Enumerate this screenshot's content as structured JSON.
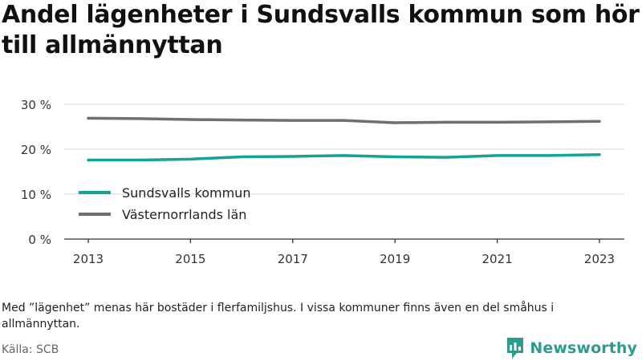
{
  "title": "Andel lägenheter i Sundsvalls kommun som hör till allmännyttan",
  "note": "Med ”lägenhet” menas här bostäder i flerfamiljshus. I vissa kommuner finns även en del småhus i allmännyttan.",
  "source": "Källa: SCB",
  "brand": {
    "name": "Newsworthy",
    "icon": "newsworthy-logo-icon",
    "color": "#2a9d8f"
  },
  "chart_data": {
    "type": "line",
    "x": [
      2013,
      2014,
      2015,
      2016,
      2017,
      2018,
      2019,
      2020,
      2021,
      2022,
      2023
    ],
    "x_ticks": [
      "2013",
      "2015",
      "2017",
      "2019",
      "2021",
      "2023"
    ],
    "y_ticks": [
      "0 %",
      "10 %",
      "20 %",
      "30 %"
    ],
    "ylim": [
      0,
      30
    ],
    "grid": true,
    "legend_position": "bottom-left",
    "series": [
      {
        "name": "Sundsvalls kommun",
        "color": "#14a394",
        "values": [
          17.6,
          17.6,
          17.8,
          18.3,
          18.4,
          18.6,
          18.3,
          18.2,
          18.6,
          18.6,
          18.8
        ]
      },
      {
        "name": "Västernorrlands län",
        "color": "#6e6e73",
        "values": [
          26.9,
          26.8,
          26.6,
          26.5,
          26.4,
          26.4,
          25.9,
          26.0,
          26.0,
          26.1,
          26.2
        ]
      }
    ]
  }
}
